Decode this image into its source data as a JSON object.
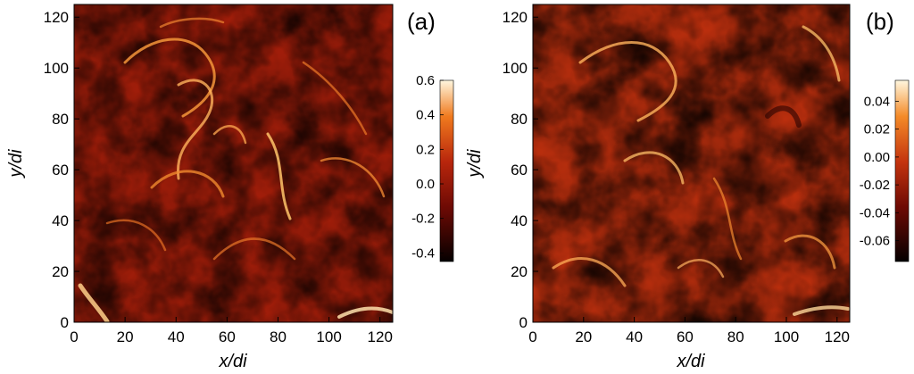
{
  "chart_data": [
    {
      "type": "heatmap",
      "panel_label": "(a)",
      "xlabel": "x/di",
      "ylabel": "y/di",
      "xlim": [
        0,
        125
      ],
      "ylim": [
        0,
        125
      ],
      "x_ticks": [
        0,
        20,
        40,
        60,
        80,
        100,
        120
      ],
      "y_ticks": [
        0,
        20,
        40,
        60,
        80,
        100,
        120
      ],
      "colorbar": {
        "range": [
          -0.45,
          0.6
        ],
        "ticks": [
          0.6,
          0.4,
          0.2,
          0.0,
          -0.2,
          -0.4
        ],
        "tick_labels": [
          "0.6",
          "0.4",
          "0.2",
          "0.0",
          "-0.2",
          "-0.4"
        ],
        "colormap": "black-red-orange-white"
      },
      "colors": {
        "min": "#050000",
        "low": "#6e0a04",
        "mid": "#b8260c",
        "high": "#f07a1e",
        "max": "#fff7df"
      }
    },
    {
      "type": "heatmap",
      "panel_label": "(b)",
      "xlabel": "x/di",
      "ylabel": "y/di",
      "xlim": [
        0,
        125
      ],
      "ylim": [
        0,
        125
      ],
      "x_ticks": [
        0,
        20,
        40,
        60,
        80,
        100,
        120
      ],
      "y_ticks": [
        0,
        20,
        40,
        60,
        80,
        100,
        120
      ],
      "colorbar": {
        "range": [
          -0.075,
          0.055
        ],
        "ticks": [
          0.04,
          0.02,
          0.0,
          -0.02,
          -0.04,
          -0.06
        ],
        "tick_labels": [
          "0.04",
          "0.02",
          "0.00",
          "-0.02",
          "-0.04",
          "-0.06"
        ],
        "colormap": "black-red-orange-white"
      },
      "colors": {
        "min": "#050000",
        "low": "#6e0a04",
        "mid": "#c4340e",
        "high": "#f48a28",
        "max": "#fff7df"
      }
    }
  ]
}
